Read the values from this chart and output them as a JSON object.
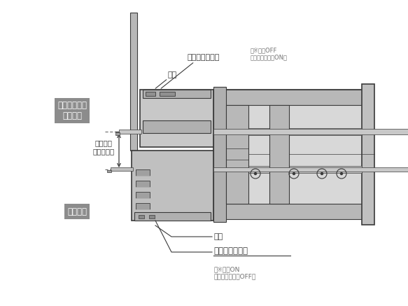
{
  "bg_color": "#ffffff",
  "lc": "#3a3a3a",
  "lg": "#cccccc",
  "mg": "#aaaaaa",
  "dg": "#888888",
  "vdg": "#666666",
  "white": "#ffffff",
  "label_box": "#8c8c8c",
  "small_tc": "#707070",
  "fig_width": 5.83,
  "fig_height": 4.37,
  "dpi": 100,
  "labels": {
    "buffer_active": "バッファ機構\n作動状態",
    "normal_state": "通常状態",
    "buffer_stroke": "バッファ\nストローク",
    "magnet_top": "磁石",
    "magnet_bottom": "磁石",
    "autoswitch_top": "オートスイッチ",
    "autoswitch_top_sub1": "※常時OFF",
    "autoswitch_top_sub2": "バッファ作動時ON）",
    "autoswitch_top_paren": "（",
    "autoswitch_bottom": "オートスイッチ",
    "autoswitch_bottom_sub": "（※常時ON\nバッファ作動時OFF）"
  }
}
